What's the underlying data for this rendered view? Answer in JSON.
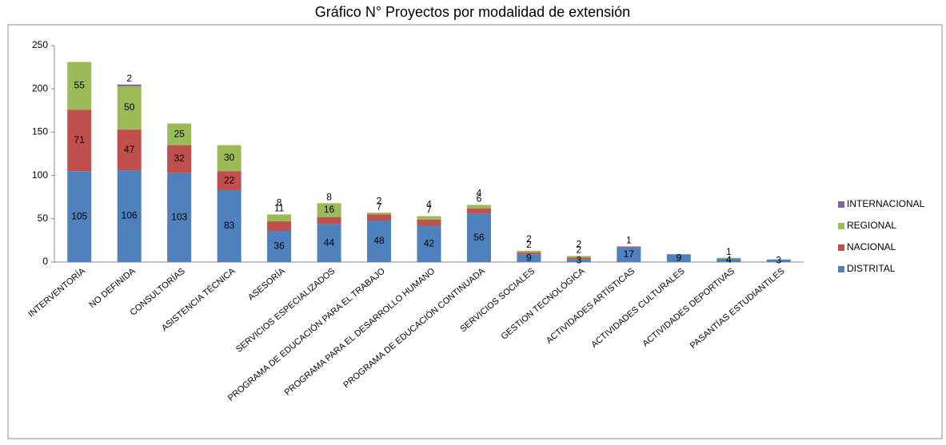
{
  "chart_data": {
    "type": "stacked_bar",
    "title": "Gráfico N°  Proyectos por modalidad de extensión",
    "categories": [
      "INTERVENTORÍA",
      "NO DEFINIDA",
      "CONSULTORÍAS",
      "ASISTENCIA TÉCNICA",
      "ASESORÍA",
      "SERVICIOS ESPECIALIZADOS",
      "PROGRAMA DE EDUCACIÓN PARA EL TRABAJO",
      "PROGRAMA PARA EL DESARROLLO HUMANO",
      "PROGRAMA DE EDUCACIÓN CONTINUADA",
      "SERVICIOS SOCIALES",
      "GESTION TECNOLÓGICA",
      "ACTIVIDADES ARTÍSTICAS",
      "ACTIVIDADES CULTURALES",
      "ACTIVIDADES DEPORTIVAS",
      "PASANTÍAS ESTUDIANTILES"
    ],
    "series": [
      {
        "name": "DISTRITAL",
        "color": "#4f81bd",
        "values": [
          105,
          106,
          103,
          83,
          36,
          44,
          48,
          42,
          56,
          9,
          3,
          17,
          9,
          4,
          3
        ]
      },
      {
        "name": "NACIONAL",
        "color": "#c0504d",
        "values": [
          71,
          47,
          32,
          22,
          11,
          8,
          7,
          7,
          6,
          2,
          2,
          1,
          null,
          null,
          null
        ]
      },
      {
        "name": "REGIONAL",
        "color": "#9bbb59",
        "values": [
          55,
          50,
          25,
          30,
          8,
          16,
          2,
          4,
          4,
          2,
          2,
          null,
          null,
          1,
          null
        ]
      },
      {
        "name": "INTERNACIONAL",
        "color": "#8064a2",
        "values": [
          null,
          2,
          null,
          null,
          null,
          null,
          null,
          null,
          null,
          null,
          null,
          null,
          null,
          null,
          null
        ]
      }
    ],
    "ylim": [
      0,
      250
    ],
    "yticks": [
      0,
      50,
      100,
      150,
      200,
      250
    ],
    "grid": false,
    "legend": "right"
  }
}
